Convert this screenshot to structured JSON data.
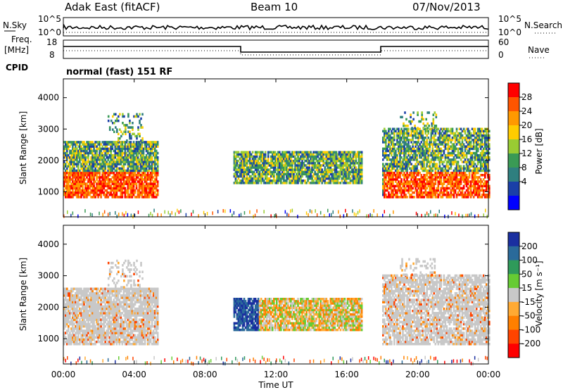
{
  "header": {
    "station": "Adak East (fitACF)",
    "beam": "Beam 10",
    "date": "07/Nov/2013"
  },
  "strip": {
    "nsky_label": "N.Sky",
    "nsearch_label": "N.Search",
    "noise_tick_top": "10^5",
    "noise_tick_bottom": "10^0",
    "freq_label": "Freq.",
    "freq_unit": "[MHz]",
    "freq_ticks": [
      "18",
      "8"
    ],
    "nave_label": "Nave",
    "nave_ticks": [
      "60",
      "0"
    ],
    "cpid_label": "CPID",
    "cpid_text": "normal (fast) 151 RF"
  },
  "chart_data": [
    {
      "type": "heatmap",
      "name": "power",
      "ylabel": "Slant Range [km]",
      "yticks": [
        "4000",
        "3000",
        "2000",
        "1000"
      ],
      "ylim": [
        200,
        4600
      ],
      "xlim": [
        0,
        24
      ],
      "colorbar": {
        "label": "Power [dB]",
        "ticks": [
          "28",
          "24",
          "20",
          "16",
          "12",
          "8",
          "4"
        ],
        "colors": [
          "#ff0000",
          "#ff5500",
          "#ff9900",
          "#ffcc00",
          "#99cc33",
          "#3a9a55",
          "#2f7f7f",
          "#1a3fa8",
          "#0000ff"
        ]
      }
    },
    {
      "type": "heatmap",
      "name": "velocity",
      "ylabel": "Slant Range [km]",
      "yticks": [
        "4000",
        "3000",
        "2000",
        "1000"
      ],
      "ylim": [
        200,
        4600
      ],
      "xlim": [
        0,
        24
      ],
      "xlabel": "Time UT",
      "xticks": [
        "00:00",
        "04:00",
        "08:00",
        "12:00",
        "16:00",
        "20:00",
        "00:00"
      ],
      "colorbar": {
        "label": "Velocity [m s⁻¹]",
        "ticks": [
          "200",
          "100",
          "50",
          "15",
          "-15",
          "-50",
          "-100",
          "-200"
        ],
        "colors": [
          "#1a2fa0",
          "#2a6a9a",
          "#2f9a5a",
          "#66cc33",
          "#c8c8c8",
          "#ffaa33",
          "#ff7f00",
          "#ff4400",
          "#ff0000"
        ]
      }
    }
  ]
}
